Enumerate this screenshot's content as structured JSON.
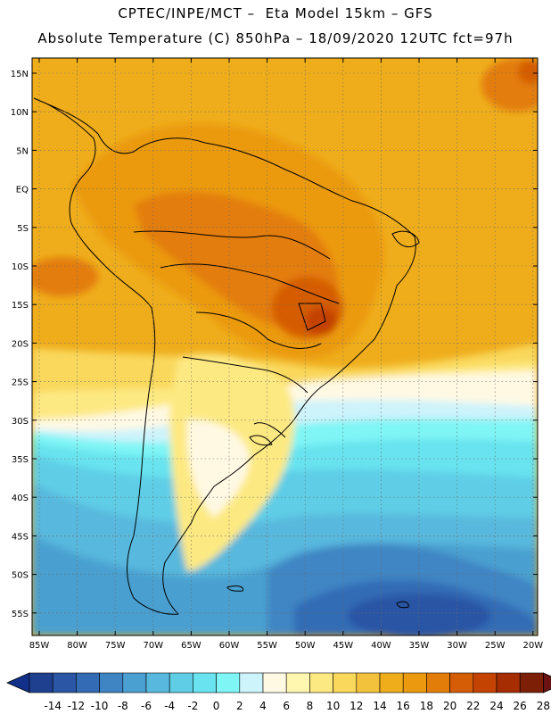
{
  "header": {
    "line1": "CPTEC/INPE/MCT –  Eta Model 15km – GFS",
    "line2": "Absolute Temperature (C) 850hPa – 18/09/2020 12UTC fct=97h"
  },
  "map": {
    "lat_labels": [
      "15N",
      "10N",
      "5N",
      "EQ",
      "5S",
      "10S",
      "15S",
      "20S",
      "25S",
      "30S",
      "35S",
      "40S",
      "45S",
      "50S",
      "55S"
    ],
    "lon_labels": [
      "85W",
      "80W",
      "75W",
      "70W",
      "65W",
      "60W",
      "55W",
      "50W",
      "45W",
      "40W",
      "35W",
      "30W",
      "25W",
      "20W"
    ]
  },
  "colorbar": {
    "labels": [
      "-14",
      "-12",
      "-10",
      "-8",
      "-6",
      "-4",
      "-2",
      "0",
      "2",
      "4",
      "6",
      "8",
      "10",
      "12",
      "14",
      "16",
      "18",
      "20",
      "22",
      "24",
      "26",
      "28"
    ],
    "colors": [
      "#1f3f8f",
      "#2b55a5",
      "#336cb5",
      "#3f85c4",
      "#4aa0d0",
      "#58b8dd",
      "#5fcde6",
      "#68e3ef",
      "#7ff5f5",
      "#cdf3fb",
      "#fff9e4",
      "#fff6b0",
      "#fde982",
      "#f9d85b",
      "#f3c23d",
      "#efad1c",
      "#eb9a0f",
      "#e37d0a",
      "#d55d06",
      "#c44303",
      "#a62c01",
      "#7c1f06"
    ],
    "left_arrow_color": "#12308a",
    "right_arrow_color": "#6b1212"
  }
}
